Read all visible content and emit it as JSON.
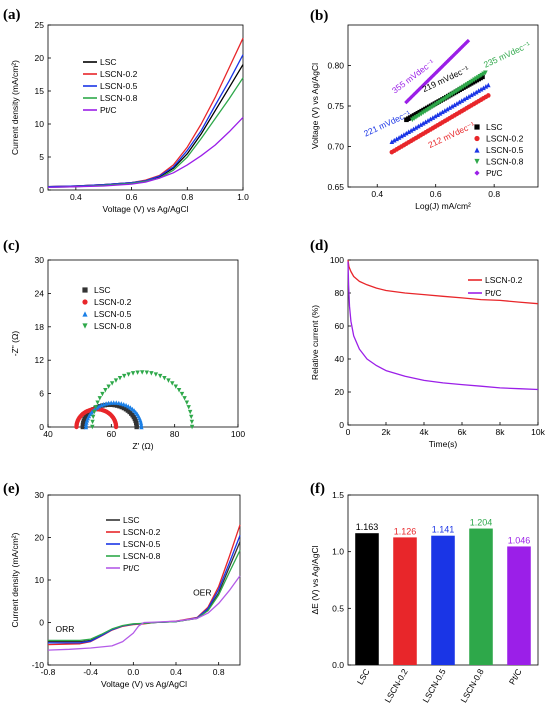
{
  "panels": {
    "a": {
      "label": "(a)",
      "chart_data": {
        "type": "line",
        "xlabel": "Voltage (V) vs Ag/AgCl",
        "ylabel": "Current density (mA/cm²)",
        "xlim": [
          0.3,
          1.0
        ],
        "ylim": [
          0,
          25
        ],
        "xticks": [
          "0.4",
          "0.6",
          "0.8",
          "1.0"
        ],
        "xtick_values": [
          0.4,
          0.6,
          0.8,
          1.0
        ],
        "yticks": [
          "0",
          "5",
          "10",
          "15",
          "20",
          "25"
        ],
        "ytick_values": [
          0,
          5,
          10,
          15,
          20,
          25
        ],
        "legend_position": "upper-left",
        "series": [
          {
            "name": "LSC",
            "color": "#000000",
            "x": [
              0.3,
              0.4,
              0.5,
              0.6,
              0.65,
              0.7,
              0.75,
              0.8,
              0.85,
              0.9,
              0.95,
              1.0
            ],
            "y": [
              0.5,
              0.6,
              0.8,
              1.1,
              1.4,
              2.0,
              3.3,
              5.5,
              8.5,
              12.0,
              15.5,
              19.0
            ]
          },
          {
            "name": "LSCN-0.2",
            "color": "#e8262a",
            "x": [
              0.3,
              0.4,
              0.5,
              0.6,
              0.65,
              0.7,
              0.75,
              0.8,
              0.85,
              0.9,
              0.95,
              1.0
            ],
            "y": [
              0.5,
              0.6,
              0.8,
              1.1,
              1.5,
              2.2,
              3.8,
              6.5,
              10.0,
              14.0,
              18.5,
              23.0
            ]
          },
          {
            "name": "LSCN-0.5",
            "color": "#1a35e6",
            "x": [
              0.3,
              0.4,
              0.5,
              0.6,
              0.65,
              0.7,
              0.75,
              0.8,
              0.85,
              0.9,
              0.95,
              1.0
            ],
            "y": [
              0.5,
              0.6,
              0.8,
              1.1,
              1.4,
              2.1,
              3.5,
              6.0,
              9.0,
              12.8,
              16.5,
              20.5
            ]
          },
          {
            "name": "LSCN-0.8",
            "color": "#2ea84a",
            "x": [
              0.3,
              0.4,
              0.5,
              0.6,
              0.65,
              0.7,
              0.75,
              0.8,
              0.85,
              0.9,
              0.95,
              1.0
            ],
            "y": [
              0.4,
              0.5,
              0.7,
              1.0,
              1.3,
              1.8,
              3.0,
              5.0,
              7.8,
              10.8,
              13.8,
              17.0
            ]
          },
          {
            "name": "Pt/C",
            "color": "#9b1fe8",
            "x": [
              0.3,
              0.4,
              0.5,
              0.6,
              0.65,
              0.7,
              0.75,
              0.8,
              0.85,
              0.9,
              0.95,
              1.0
            ],
            "y": [
              0.4,
              0.5,
              0.6,
              0.9,
              1.2,
              1.8,
              2.6,
              3.8,
              5.2,
              6.8,
              8.8,
              11.0
            ]
          }
        ]
      }
    },
    "b": {
      "label": "(b)",
      "chart_data": {
        "type": "scatter",
        "xlabel": "Log(J) mA/cm²",
        "ylabel": "Voltage (V) vs Ag/AgCl",
        "xlim": [
          0.3,
          0.95
        ],
        "ylim": [
          0.65,
          0.85
        ],
        "xticks": [
          "0.4",
          "0.6",
          "0.8"
        ],
        "xtick_values": [
          0.4,
          0.6,
          0.8
        ],
        "yticks": [
          "0.65",
          "0.70",
          "0.75",
          "0.80"
        ],
        "ytick_values": [
          0.65,
          0.7,
          0.75,
          0.8
        ],
        "legend_position": "lower-right",
        "series": [
          {
            "name": "LSC",
            "color": "#000000",
            "marker": "square",
            "x_start": 0.5,
            "x_end": 0.76,
            "y_start": 0.733,
            "y_end": 0.786
          },
          {
            "name": "LSCN-0.2",
            "color": "#e8262a",
            "marker": "circle",
            "x_start": 0.45,
            "x_end": 0.78,
            "y_start": 0.693,
            "y_end": 0.763
          },
          {
            "name": "LSCN-0.5",
            "color": "#1a35e6",
            "marker": "triangle-up",
            "x_start": 0.45,
            "x_end": 0.78,
            "y_start": 0.706,
            "y_end": 0.776
          },
          {
            "name": "LSCN-0.8",
            "color": "#2ea84a",
            "marker": "triangle-down",
            "x_start": 0.52,
            "x_end": 0.77,
            "y_start": 0.733,
            "y_end": 0.791
          },
          {
            "name": "Pt/C",
            "color": "#9b1fe8",
            "marker": "diamond",
            "x_start": 0.5,
            "x_end": 0.71,
            "y_start": 0.755,
            "y_end": 0.83
          }
        ],
        "annotations": [
          {
            "text": "355 mVdec⁻¹",
            "color": "#9b1fe8",
            "x": 0.46,
            "y": 0.765,
            "angle": -37
          },
          {
            "text": "219 mVdec⁻¹",
            "color": "#000000",
            "x": 0.56,
            "y": 0.767,
            "angle": -25
          },
          {
            "text": "235 mVdec⁻¹",
            "color": "#2ea84a",
            "x": 0.77,
            "y": 0.797,
            "angle": -25
          },
          {
            "text": "221 mVdec⁻¹",
            "color": "#1a35e6",
            "x": 0.36,
            "y": 0.712,
            "angle": -25
          },
          {
            "text": "212 mVdec⁻¹",
            "color": "#e8262a",
            "x": 0.58,
            "y": 0.698,
            "angle": -25
          }
        ]
      }
    },
    "c": {
      "label": "(c)",
      "chart_data": {
        "type": "scatter",
        "xlabel": "Z' (Ω)",
        "ylabel": "-Z\" (Ω)",
        "xlim": [
          40,
          100
        ],
        "ylim": [
          0,
          30
        ],
        "xticks": [
          "40",
          "60",
          "80",
          "100"
        ],
        "xtick_values": [
          40,
          60,
          80,
          100
        ],
        "yticks": [
          "0",
          "6",
          "12",
          "18",
          "24",
          "30"
        ],
        "ytick_values": [
          0,
          6,
          12,
          18,
          24,
          30
        ],
        "legend_position": "upper-left",
        "series": [
          {
            "name": "LSC",
            "color": "#333333",
            "marker": "square",
            "z_start": 51,
            "z_end": 68,
            "zimag_max": 4.0
          },
          {
            "name": "LSCN-0.2",
            "color": "#e8262a",
            "marker": "circle",
            "z_start": 49,
            "z_end": 61.5,
            "zimag_max": 3.2
          },
          {
            "name": "LSCN-0.5",
            "color": "#1a7fe6",
            "marker": "triangle-up",
            "z_start": 52,
            "z_end": 69.5,
            "zimag_max": 4.4
          },
          {
            "name": "LSCN-0.8",
            "color": "#2ea84a",
            "marker": "triangle-down",
            "z_start": 54,
            "z_end": 85.5,
            "zimag_max": 9.8
          }
        ]
      }
    },
    "d": {
      "label": "(d)",
      "chart_data": {
        "type": "line",
        "xlabel": "Time(s)",
        "ylabel": "Relative current (%)",
        "xlim": [
          0,
          10000
        ],
        "ylim": [
          0,
          100
        ],
        "xticks": [
          "0",
          "2k",
          "4k",
          "6k",
          "8k",
          "10k"
        ],
        "xtick_values": [
          0,
          2000,
          4000,
          6000,
          8000,
          10000
        ],
        "yticks": [
          "0",
          "20",
          "40",
          "60",
          "80",
          "100"
        ],
        "ytick_values": [
          0,
          20,
          40,
          60,
          80,
          100
        ],
        "legend_position": "upper-right",
        "series": [
          {
            "name": "LSCN-0.2",
            "color": "#e8262a",
            "x": [
              0,
              50,
              150,
              300,
              600,
              1000,
              1500,
              2000,
              3000,
              4000,
              5000,
              6000,
              7000,
              8000,
              9000,
              10000
            ],
            "y": [
              100,
              96,
              93,
              90,
              87,
              85,
              83,
              81.5,
              80,
              79,
              78,
              77,
              76,
              75.5,
              74.5,
              73.5
            ]
          },
          {
            "name": "Pt/C",
            "color": "#9b1fe8",
            "x": [
              0,
              30,
              80,
              150,
              300,
              600,
              1000,
              1500,
              2000,
              3000,
              4000,
              5000,
              6000,
              7000,
              8000,
              9000,
              10000
            ],
            "y": [
              99,
              85,
              72,
              63,
              54,
              46,
              40,
              36,
              33,
              29.5,
              27,
              25.5,
              24.5,
              23.5,
              22.5,
              22,
              21.5
            ]
          }
        ]
      }
    },
    "e": {
      "label": "(e)",
      "chart_data": {
        "type": "line",
        "xlabel": "Voltage (V) vs Ag/AgCl",
        "ylabel": "Current density (mA/cm²)",
        "xlim": [
          -0.8,
          1.0
        ],
        "ylim": [
          -10,
          30
        ],
        "xticks": [
          "-0.8",
          "-0.4",
          "0.0",
          "0.4",
          "0.8"
        ],
        "xtick_values": [
          -0.8,
          -0.4,
          0.0,
          0.4,
          0.8
        ],
        "yticks": [
          "-10",
          "0",
          "10",
          "20",
          "30"
        ],
        "ytick_values": [
          -10,
          0,
          10,
          20,
          30
        ],
        "legend_position": "upper-center",
        "annotations": [
          {
            "text": "ORR",
            "color": "#000000",
            "x": -0.73,
            "y": -2.2
          },
          {
            "text": "OER",
            "color": "#000000",
            "x": 0.56,
            "y": 6.3
          }
        ],
        "series": [
          {
            "name": "LSC",
            "color": "#333333",
            "x": [
              -0.8,
              -0.5,
              -0.4,
              -0.3,
              -0.2,
              -0.1,
              0.0,
              0.1,
              0.2,
              0.4,
              0.6,
              0.7,
              0.8,
              0.9,
              1.0
            ],
            "y": [
              -4.5,
              -4.5,
              -4.2,
              -3.0,
              -1.6,
              -0.8,
              -0.4,
              -0.2,
              0.0,
              0.2,
              1.0,
              3.0,
              7.0,
              13.0,
              19.0
            ]
          },
          {
            "name": "LSCN-0.2",
            "color": "#e8262a",
            "x": [
              -0.8,
              -0.5,
              -0.4,
              -0.3,
              -0.2,
              -0.1,
              0.0,
              0.1,
              0.2,
              0.4,
              0.6,
              0.7,
              0.8,
              0.9,
              1.0
            ],
            "y": [
              -5.2,
              -5.0,
              -4.5,
              -3.2,
              -1.8,
              -0.9,
              -0.5,
              -0.3,
              0.0,
              0.3,
              1.2,
              3.6,
              8.5,
              15.5,
              23.0
            ]
          },
          {
            "name": "LSCN-0.5",
            "color": "#1a35e6",
            "x": [
              -0.8,
              -0.5,
              -0.4,
              -0.3,
              -0.2,
              -0.1,
              0.0,
              0.1,
              0.2,
              0.4,
              0.6,
              0.7,
              0.8,
              0.9,
              1.0
            ],
            "y": [
              -4.8,
              -4.8,
              -4.4,
              -3.1,
              -1.7,
              -0.8,
              -0.4,
              -0.2,
              0.0,
              0.2,
              1.1,
              3.3,
              7.8,
              14.0,
              20.5
            ]
          },
          {
            "name": "LSCN-0.8",
            "color": "#2ea84a",
            "x": [
              -0.8,
              -0.5,
              -0.4,
              -0.3,
              -0.2,
              -0.1,
              0.0,
              0.1,
              0.2,
              0.4,
              0.6,
              0.7,
              0.8,
              0.9,
              1.0
            ],
            "y": [
              -4.2,
              -4.2,
              -3.9,
              -2.8,
              -1.5,
              -0.7,
              -0.3,
              -0.2,
              0.0,
              0.2,
              1.0,
              2.8,
              6.5,
              11.8,
              17.0
            ]
          },
          {
            "name": "Pt/C",
            "color": "#b45be8",
            "x": [
              -0.8,
              -0.6,
              -0.4,
              -0.2,
              -0.1,
              0.0,
              0.05,
              0.1,
              0.2,
              0.4,
              0.6,
              0.7,
              0.8,
              0.9,
              1.0
            ],
            "y": [
              -6.5,
              -6.3,
              -6.0,
              -5.5,
              -4.5,
              -2.5,
              -0.8,
              0.0,
              0.1,
              0.3,
              1.0,
              2.2,
              4.5,
              7.5,
              11.0
            ]
          }
        ]
      }
    },
    "f": {
      "label": "(f)",
      "chart_data": {
        "type": "bar",
        "ylabel": "ΔE (V) vs Ag/AgCl",
        "ylim": [
          0.0,
          1.5
        ],
        "yticks": [
          "0.0",
          "0.5",
          "1.0",
          "1.5"
        ],
        "ytick_values": [
          0.0,
          0.5,
          1.0,
          1.5
        ],
        "categories": [
          "LSC",
          "LSCN-0.2",
          "LSCN-0.5",
          "LSCN-0.8",
          "Pt/C"
        ],
        "values": [
          1.163,
          1.126,
          1.141,
          1.204,
          1.046
        ],
        "value_labels": [
          "1.163",
          "1.126",
          "1.141",
          "1.204",
          "1.046"
        ],
        "colors": [
          "#000000",
          "#e8262a",
          "#1a35e6",
          "#2ea84a",
          "#9b1fe8"
        ]
      }
    }
  }
}
